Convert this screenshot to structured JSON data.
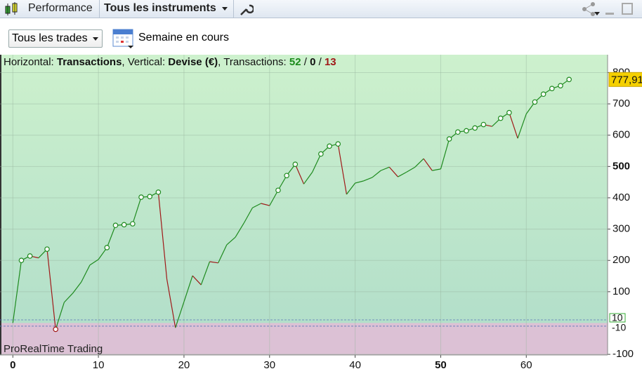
{
  "toolbar": {
    "title": "Performance",
    "instrument": "Tous les instruments"
  },
  "filters": {
    "trades": "Tous les trades",
    "period": "Semaine en cours"
  },
  "info": [
    {
      "text": "Horizontal: ",
      "style": "normal"
    },
    {
      "text": "Transactions",
      "style": "bold"
    },
    {
      "text": ", Vertical: ",
      "style": "normal"
    },
    {
      "text": "Devise (€)",
      "style": "bold"
    },
    {
      "text": ", Transactions: ",
      "style": "normal"
    },
    {
      "text": "52",
      "style": "win"
    },
    {
      "text": " / ",
      "style": "normal"
    },
    {
      "text": "0",
      "style": "bold"
    },
    {
      "text": " / ",
      "style": "normal"
    },
    {
      "text": "13",
      "style": "loss"
    }
  ],
  "watermark": "ProRealTime Trading",
  "chart_data": {
    "type": "line",
    "x": [
      0,
      1,
      2,
      3,
      4,
      5,
      6,
      7,
      8,
      9,
      10,
      11,
      12,
      13,
      14,
      15,
      16,
      17,
      18,
      19,
      20,
      21,
      22,
      23,
      24,
      25,
      26,
      27,
      28,
      29,
      30,
      31,
      32,
      33,
      34,
      35,
      36,
      37,
      38,
      39,
      40,
      41,
      42,
      43,
      44,
      45,
      46,
      47,
      48,
      49,
      50,
      51,
      52,
      53,
      54,
      55,
      56,
      57,
      58,
      59,
      60,
      61,
      62,
      63,
      64,
      65
    ],
    "values": [
      0,
      200,
      214,
      208,
      236,
      -20,
      66,
      95,
      131,
      185,
      203,
      241,
      312,
      314,
      317,
      402,
      404,
      418,
      140,
      -15,
      68,
      151,
      122,
      196,
      192,
      250,
      274,
      319,
      368,
      382,
      375,
      424,
      471,
      507,
      444,
      482,
      540,
      565,
      572,
      411,
      447,
      454,
      465,
      487,
      498,
      467,
      482,
      498,
      525,
      487,
      492,
      588,
      610,
      614,
      623,
      634,
      628,
      654,
      672,
      590,
      668,
      706,
      731,
      749,
      758,
      777.91
    ],
    "last_value_label": "777,91",
    "marked": [
      1,
      2,
      4,
      5,
      11,
      12,
      13,
      14,
      15,
      16,
      17,
      31,
      32,
      33,
      36,
      37,
      38,
      51,
      52,
      53,
      54,
      55,
      57,
      58,
      61,
      62,
      63,
      64,
      65
    ],
    "up_color": "#1e8a1e",
    "down_color": "#a01818",
    "xlim": [
      -1.5,
      69.5
    ],
    "ylim": [
      -102,
      857
    ],
    "xticks": [
      0,
      10,
      20,
      30,
      40,
      50,
      60
    ],
    "yticks": [
      -100,
      100,
      200,
      300,
      400,
      500,
      600,
      700,
      800
    ],
    "reference_lines": [
      {
        "value": 10,
        "label": "10"
      },
      {
        "value": -10,
        "label": "-10"
      }
    ],
    "grid": true
  }
}
